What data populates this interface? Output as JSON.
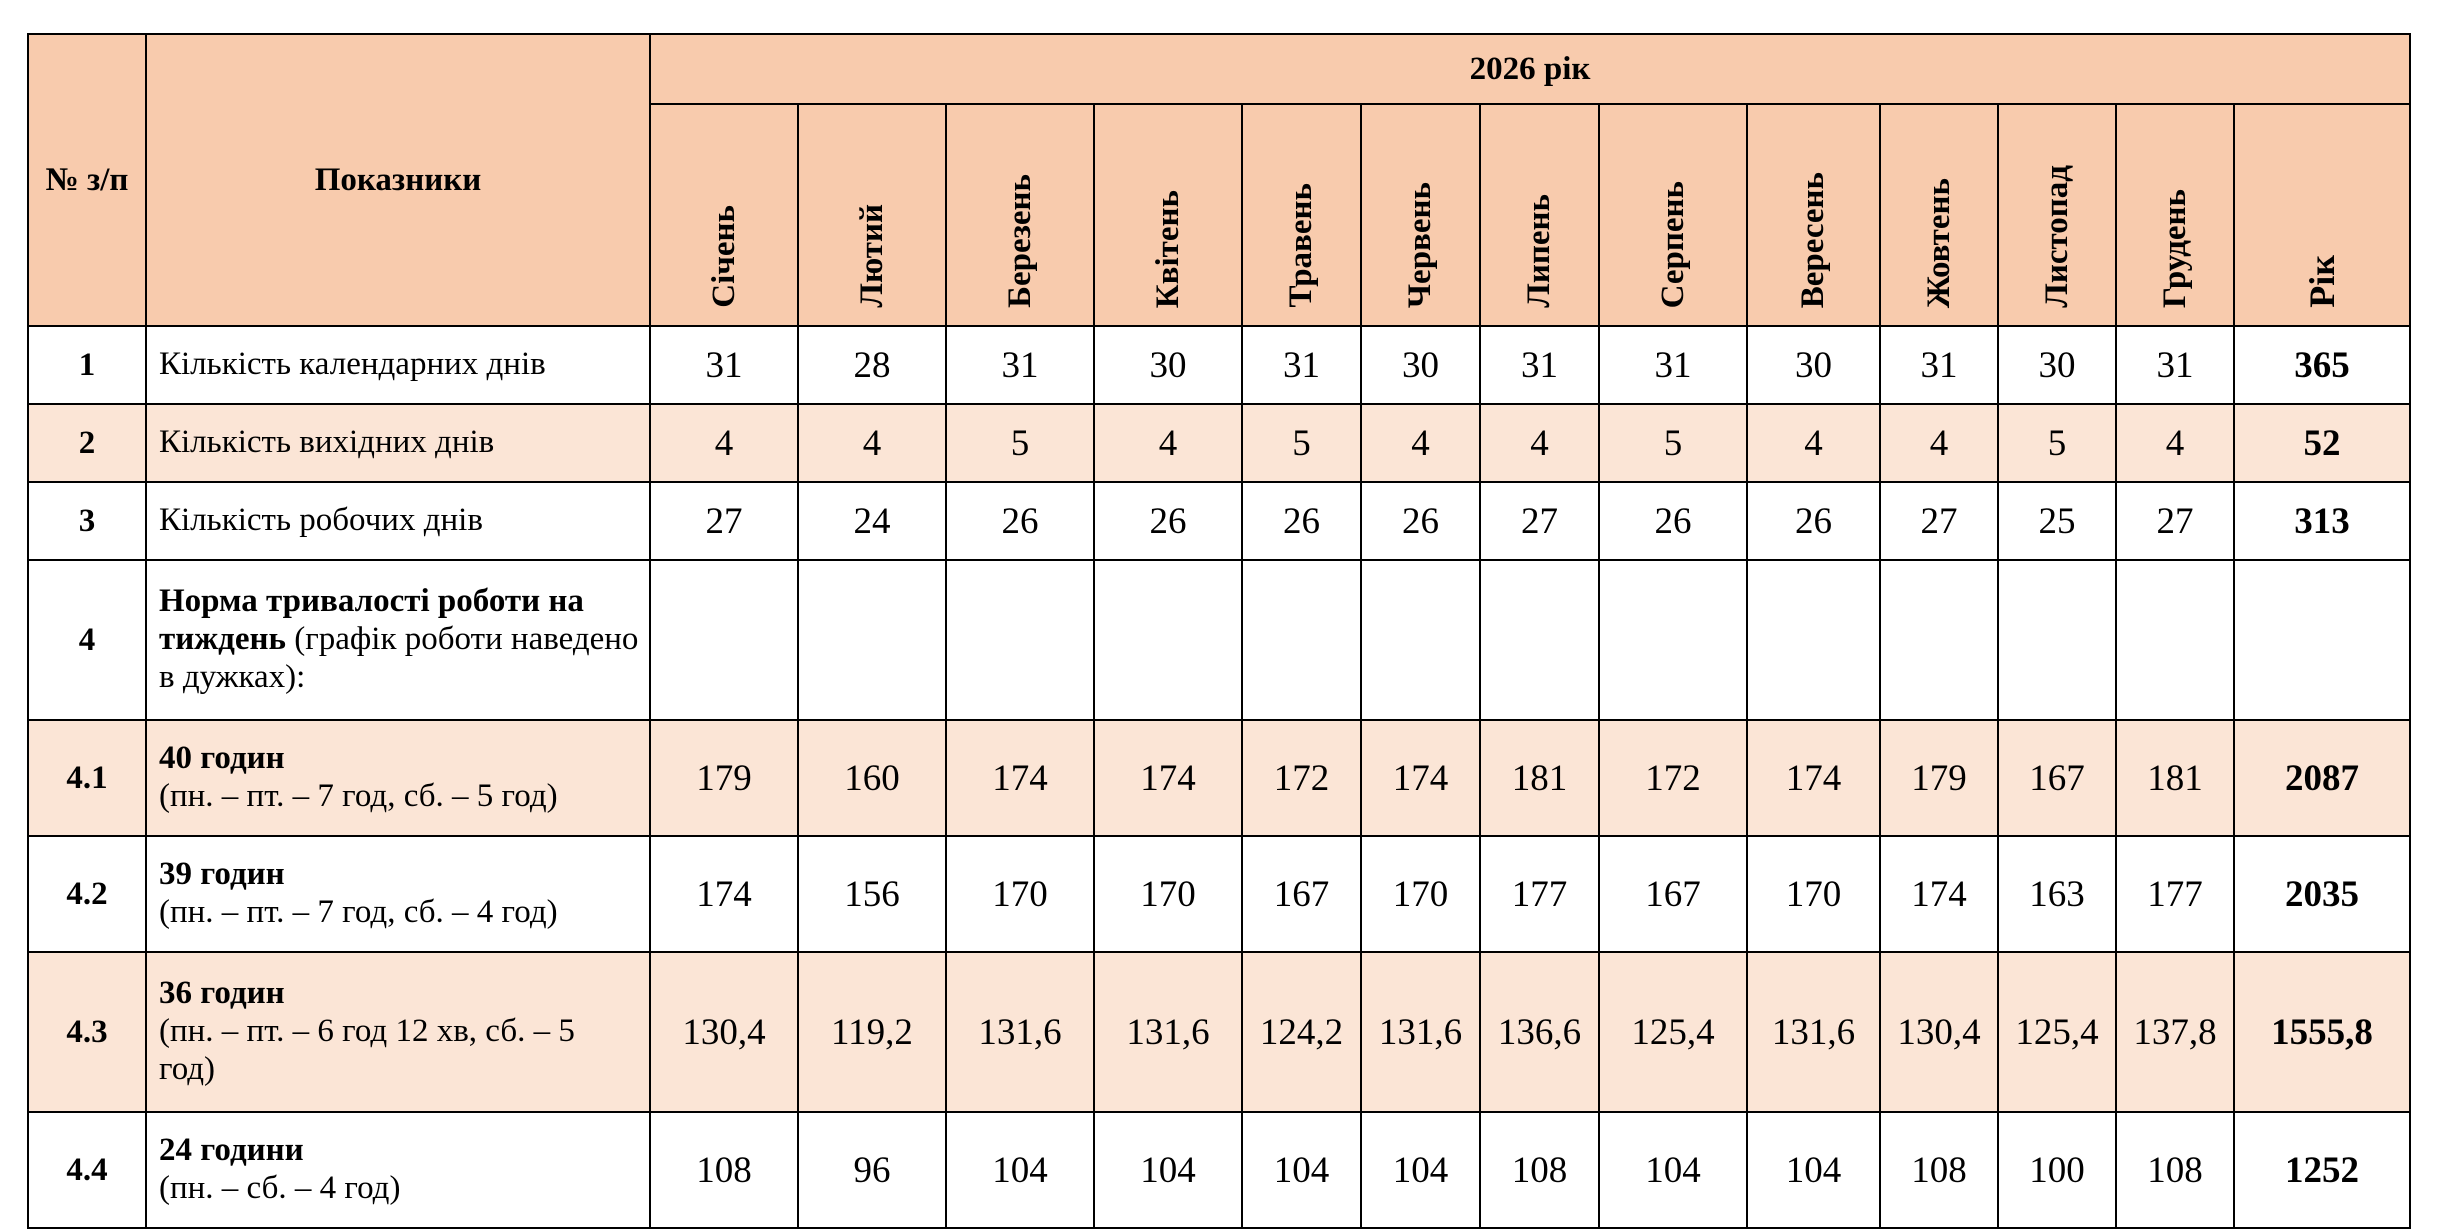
{
  "header": {
    "no_label": "№ з/п",
    "indicators_label": "Показники",
    "year_label": "2026 рік",
    "months": [
      "Січень",
      "Лютий",
      "Березень",
      "Квітень",
      "Травень",
      "Червень",
      "Липень",
      "Серпень",
      "Вересень",
      "Жовтень",
      "Листопад",
      "Грудень"
    ],
    "year_total_label": "Рік"
  },
  "rows": [
    {
      "no": "1",
      "label": "Кількість календарних днів",
      "values": [
        "31",
        "28",
        "31",
        "30",
        "31",
        "30",
        "31",
        "31",
        "30",
        "31",
        "30",
        "31"
      ],
      "total": "365"
    },
    {
      "no": "2",
      "label": "Кількість вихідних днів",
      "values": [
        "4",
        "4",
        "5",
        "4",
        "5",
        "4",
        "4",
        "5",
        "4",
        "4",
        "5",
        "4"
      ],
      "total": "52"
    },
    {
      "no": "3",
      "label": "Кількість робочих днів",
      "values": [
        "27",
        "24",
        "26",
        "26",
        "26",
        "26",
        "27",
        "26",
        "26",
        "27",
        "25",
        "27"
      ],
      "total": "313"
    },
    {
      "no": "4",
      "label_bold": "Норма тривалості роботи на тиждень",
      "label_rest": " (графік роботи наведено в дужках):"
    },
    {
      "no": "4.1",
      "title": "40 годин",
      "subtitle": "(пн. – пт. – 7 год, сб. – 5 год)",
      "values": [
        "179",
        "160",
        "174",
        "174",
        "172",
        "174",
        "181",
        "172",
        "174",
        "179",
        "167",
        "181"
      ],
      "total": "2087"
    },
    {
      "no": "4.2",
      "title": "39 годин",
      "subtitle": "(пн. – пт. – 7 год, сб. – 4 год)",
      "values": [
        "174",
        "156",
        "170",
        "170",
        "167",
        "170",
        "177",
        "167",
        "170",
        "174",
        "163",
        "177"
      ],
      "total": "2035"
    },
    {
      "no": "4.3",
      "title": "36 годин",
      "subtitle": "(пн. – пт. – 6 год 12 хв, сб. – 5 год)",
      "values": [
        "130,4",
        "119,2",
        "131,6",
        "131,6",
        "124,2",
        "131,6",
        "136,6",
        "125,4",
        "131,6",
        "130,4",
        "125,4",
        "137,8"
      ],
      "total": "1555,8"
    },
    {
      "no": "4.4",
      "title": "24 години",
      "subtitle": "(пн. – сб. – 4 год)",
      "values": [
        "108",
        "96",
        "104",
        "104",
        "104",
        "104",
        "108",
        "104",
        "104",
        "108",
        "100",
        "108"
      ],
      "total": "1252"
    }
  ]
}
